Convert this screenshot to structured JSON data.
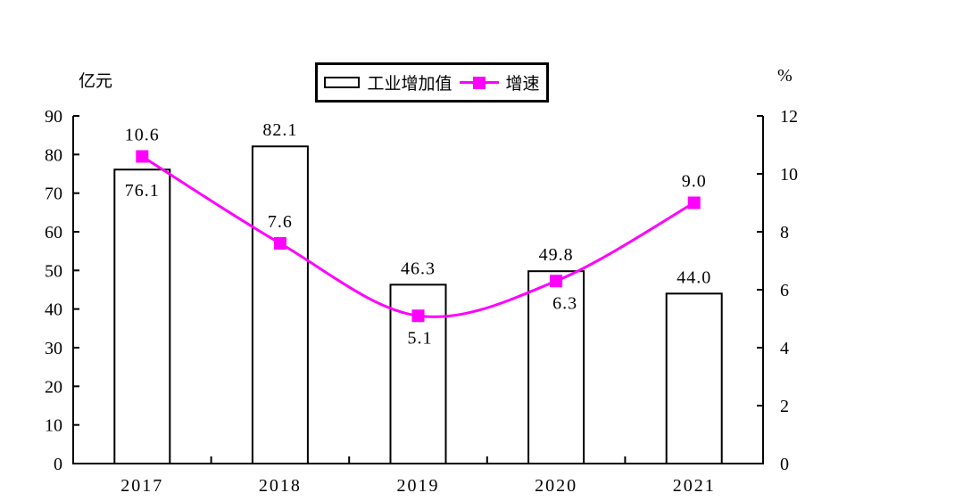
{
  "colors": {
    "background": "#FFFFFF",
    "axis": "#000000",
    "text": "#000000",
    "bar_fill": "#FFFFFF",
    "bar_stroke": "#000000",
    "line": "#FF00FF"
  },
  "chart_data": {
    "type": "bar+line-combo",
    "categories": [
      "2017",
      "2018",
      "2019",
      "2020",
      "2021"
    ],
    "series": [
      {
        "name": "工业增加值",
        "type": "bar",
        "axis": "left",
        "values": [
          76.1,
          82.1,
          46.3,
          49.8,
          44.0
        ],
        "labels": [
          "76.1",
          "82.1",
          "46.3",
          "49.8",
          "44.0"
        ]
      },
      {
        "name": "增速",
        "type": "line",
        "axis": "right",
        "values": [
          10.6,
          7.6,
          5.1,
          6.3,
          9.0
        ],
        "labels": [
          "10.6",
          "7.6",
          "5.1",
          "6.3",
          "9.0"
        ],
        "marker": "square"
      }
    ],
    "left_axis": {
      "unit": "亿元",
      "min": 0,
      "max": 90,
      "step": 10,
      "ticks": [
        "0",
        "10",
        "20",
        "30",
        "40",
        "50",
        "60",
        "70",
        "80",
        "90"
      ]
    },
    "right_axis": {
      "unit": "%",
      "min": 0,
      "max": 12,
      "step": 2,
      "ticks": [
        "0",
        "2",
        "4",
        "6",
        "8",
        "10",
        "12"
      ]
    },
    "grid": false,
    "legend_position": "top-center"
  }
}
